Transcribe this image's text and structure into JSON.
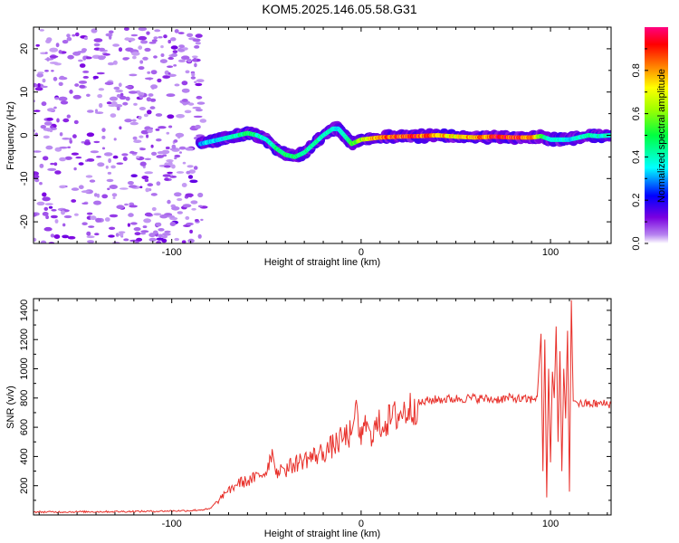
{
  "title": "KOM5.2025.146.05.58.G31",
  "chart_data": [
    {
      "type": "heatmap",
      "xlabel": "Height of straight line (km)",
      "ylabel": "Frequency (Hz)",
      "xlim": [
        -173,
        132
      ],
      "ylim": [
        -25,
        25
      ],
      "xticks": [
        -100,
        0,
        100
      ],
      "yticks": [
        20,
        10,
        0,
        -10,
        -20
      ],
      "colorbar": {
        "label": "Normalized spectral amplitude",
        "range": [
          0,
          1
        ],
        "ticks": [
          0.0,
          0.2,
          0.4,
          0.6,
          0.8
        ]
      },
      "noise_region": {
        "x": [
          -173,
          -83
        ],
        "y": [
          -25,
          25
        ]
      },
      "signal_track": {
        "x": [
          -85,
          -80,
          -75,
          -70,
          -65,
          -60,
          -55,
          -50,
          -45,
          -40,
          -35,
          -30,
          -25,
          -20,
          -15,
          -12,
          -10,
          -7,
          -5,
          0,
          10,
          20,
          30,
          40,
          50,
          60,
          70,
          80,
          90,
          95,
          100,
          105,
          110,
          115,
          120,
          125,
          132
        ],
        "y": [
          -2,
          -1.5,
          -1,
          -0.5,
          0,
          0.5,
          0,
          -1,
          -3,
          -4.5,
          -5,
          -4,
          -2,
          0,
          1.5,
          1.5,
          0.5,
          -1,
          -2,
          -1,
          -0.5,
          -0.3,
          -0.2,
          0,
          -0.3,
          -0.5,
          -0.3,
          -0.5,
          -0.5,
          -0.2,
          -1,
          -1,
          -1,
          -0.5,
          0,
          -0.2,
          0
        ],
        "amplitude": [
          0.3,
          0.35,
          0.35,
          0.4,
          0.45,
          0.5,
          0.45,
          0.4,
          0.45,
          0.5,
          0.5,
          0.45,
          0.45,
          0.4,
          0.4,
          0.35,
          0.4,
          0.45,
          0.55,
          0.7,
          0.85,
          0.9,
          0.95,
          0.8,
          0.75,
          0.8,
          0.95,
          0.95,
          0.9,
          0.6,
          0.4,
          0.4,
          0.35,
          0.4,
          0.45,
          0.4,
          0.4
        ]
      }
    },
    {
      "type": "line",
      "xlabel": "Height of straight line (km)",
      "ylabel": "SNR (v/v)",
      "xlim": [
        -173,
        132
      ],
      "ylim": [
        0,
        1480
      ],
      "xticks": [
        -100,
        0,
        100
      ],
      "yticks": [
        200,
        400,
        600,
        800,
        1000,
        1200,
        1400
      ],
      "color": "#e8302a",
      "series": [
        {
          "x": [
            -173,
            -140,
            -110,
            -90,
            -80,
            -75,
            -72,
            -70,
            -65,
            -60,
            -55,
            -50,
            -47,
            -45,
            -42,
            -40,
            -35,
            -30,
            -25,
            -20,
            -15,
            -10,
            -5,
            -3,
            0,
            3,
            5,
            10,
            15,
            20,
            25,
            30,
            35,
            40,
            50,
            60,
            70,
            80,
            85,
            90,
            93,
            95,
            96,
            97,
            98,
            99,
            100,
            101,
            102,
            103,
            104,
            105,
            106,
            107,
            108,
            109,
            110,
            111,
            112,
            113,
            115,
            120,
            125,
            132
          ],
          "y": [
            20,
            22,
            25,
            30,
            40,
            100,
            150,
            160,
            220,
            230,
            260,
            300,
            450,
            280,
            330,
            310,
            350,
            380,
            400,
            430,
            470,
            520,
            560,
            700,
            520,
            640,
            560,
            620,
            650,
            690,
            720,
            760,
            780,
            790,
            795,
            800,
            790,
            800,
            790,
            790,
            810,
            1240,
            300,
            1200,
            120,
            1000,
            360,
            980,
            800,
            1290,
            500,
            1120,
            300,
            1000,
            660,
            1260,
            160,
            1470,
            780,
            780,
            760,
            760,
            760,
            760
          ]
        }
      ]
    }
  ]
}
